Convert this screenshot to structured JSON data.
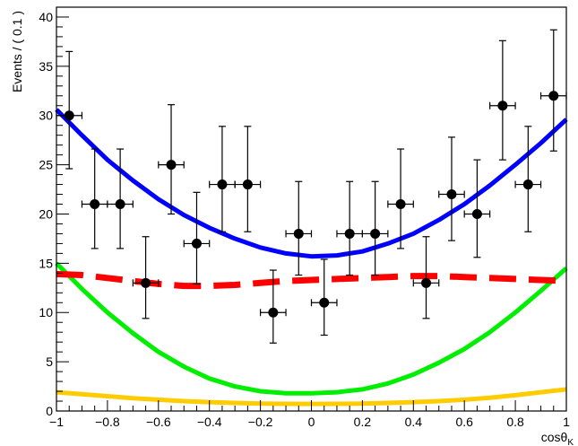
{
  "chart_data": {
    "type": "scatter",
    "title": "",
    "xlabel": "cosθK",
    "xlabel_main": "cosθ",
    "xlabel_sub": "K",
    "ylabel": "Events / ( 0.1 )",
    "xlim": [
      -1,
      1
    ],
    "ylim": [
      0,
      41
    ],
    "x_ticks": [
      -1,
      -0.8,
      -0.6,
      -0.4,
      -0.2,
      0,
      0.2,
      0.4,
      0.6,
      0.8,
      1
    ],
    "x_tick_labels": [
      "−1",
      "−0.8",
      "−0.6",
      "−0.4",
      "−0.2",
      "0",
      "0.2",
      "0.4",
      "0.6",
      "0.8",
      "1"
    ],
    "y_ticks": [
      0,
      5,
      10,
      15,
      20,
      25,
      30,
      35,
      40
    ],
    "y_tick_labels": [
      "0",
      "5",
      "10",
      "15",
      "20",
      "25",
      "30",
      "35",
      "40"
    ],
    "grid": false,
    "legend": "none",
    "points": {
      "x": [
        -0.95,
        -0.85,
        -0.75,
        -0.65,
        -0.55,
        -0.45,
        -0.35,
        -0.25,
        -0.15,
        -0.05,
        0.05,
        0.15,
        0.25,
        0.35,
        0.45,
        0.55,
        0.65,
        0.75,
        0.85,
        0.95
      ],
      "y": [
        30,
        21,
        21,
        13,
        25,
        17,
        23,
        23,
        10,
        18,
        11,
        18,
        18,
        21,
        13,
        22,
        20,
        31,
        23,
        32
      ],
      "y_err_low": [
        5.4,
        4.5,
        4.5,
        3.6,
        5.0,
        4.1,
        4.8,
        4.8,
        3.1,
        4.2,
        3.3,
        4.2,
        4.2,
        4.5,
        3.6,
        4.7,
        4.4,
        5.5,
        4.8,
        5.6
      ],
      "y_err_high": [
        6.5,
        5.6,
        5.6,
        4.7,
        6.1,
        5.2,
        5.9,
        5.9,
        4.3,
        5.3,
        4.4,
        5.3,
        5.3,
        5.6,
        4.7,
        5.8,
        5.5,
        6.6,
        5.9,
        6.7
      ],
      "x_err": 0.05,
      "color": "#000000"
    },
    "curves": [
      {
        "style": "solid",
        "color": "#0000ff",
        "x": [
          -1,
          -0.9,
          -0.8,
          -0.7,
          -0.6,
          -0.5,
          -0.4,
          -0.3,
          -0.2,
          -0.1,
          0,
          0.1,
          0.2,
          0.3,
          0.4,
          0.5,
          0.6,
          0.7,
          0.8,
          0.9,
          1
        ],
        "y": [
          30.6,
          28.0,
          25.5,
          23.4,
          21.5,
          19.9,
          18.6,
          17.5,
          16.6,
          16.0,
          15.7,
          15.8,
          16.2,
          17.0,
          18.0,
          19.4,
          21.0,
          22.9,
          25.0,
          27.2,
          29.6
        ]
      },
      {
        "style": "dashed",
        "color": "#ff0000",
        "x": [
          -1,
          -0.9,
          -0.8,
          -0.7,
          -0.6,
          -0.5,
          -0.4,
          -0.3,
          -0.2,
          -0.1,
          0,
          0.1,
          0.2,
          0.3,
          0.4,
          0.5,
          0.6,
          0.7,
          0.8,
          0.9,
          1
        ],
        "y": [
          13.9,
          13.8,
          13.5,
          13.2,
          12.9,
          12.7,
          12.7,
          12.8,
          13.0,
          13.2,
          13.3,
          13.4,
          13.5,
          13.6,
          13.7,
          13.7,
          13.6,
          13.5,
          13.4,
          13.3,
          13.2
        ]
      },
      {
        "style": "solid",
        "color": "#00ee00",
        "x": [
          -1,
          -0.9,
          -0.8,
          -0.7,
          -0.6,
          -0.5,
          -0.4,
          -0.3,
          -0.2,
          -0.1,
          0,
          0.1,
          0.2,
          0.3,
          0.4,
          0.5,
          0.6,
          0.7,
          0.8,
          0.9,
          1
        ],
        "y": [
          15.0,
          12.4,
          10.0,
          7.9,
          6.0,
          4.5,
          3.3,
          2.5,
          2.0,
          1.8,
          1.8,
          1.9,
          2.2,
          2.8,
          3.7,
          4.9,
          6.3,
          8.0,
          10.0,
          12.2,
          14.5
        ]
      },
      {
        "style": "solid",
        "color": "#ffcc00",
        "x": [
          -1,
          -0.9,
          -0.8,
          -0.7,
          -0.6,
          -0.5,
          -0.4,
          -0.3,
          -0.2,
          -0.1,
          0,
          0.1,
          0.2,
          0.3,
          0.4,
          0.5,
          0.6,
          0.7,
          0.8,
          0.9,
          1
        ],
        "y": [
          1.9,
          1.7,
          1.5,
          1.3,
          1.15,
          1.0,
          0.9,
          0.82,
          0.76,
          0.73,
          0.72,
          0.73,
          0.76,
          0.82,
          0.9,
          1.0,
          1.15,
          1.35,
          1.6,
          1.9,
          2.2
        ]
      }
    ]
  }
}
